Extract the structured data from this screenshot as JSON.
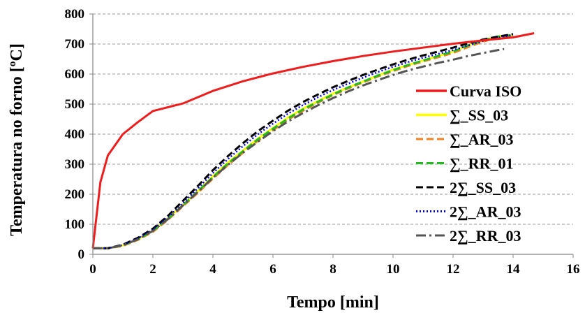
{
  "chart_data": {
    "type": "line",
    "title": "",
    "xlabel": "Tempo [min]",
    "ylabel": "Temperatura no forno [ºC]",
    "xlim": [
      0,
      16
    ],
    "ylim": [
      0,
      800
    ],
    "xticks": [
      0,
      2,
      4,
      6,
      8,
      10,
      12,
      14,
      16
    ],
    "yticks": [
      0,
      100,
      200,
      300,
      400,
      500,
      600,
      700,
      800
    ],
    "grid": "horizontal dashed",
    "legend_position": "right",
    "series": [
      {
        "name": "Curva ISO",
        "color": "#ee1c1c",
        "dash": "solid",
        "points": [
          [
            0,
            20
          ],
          [
            0.25,
            240
          ],
          [
            0.5,
            329
          ],
          [
            1,
            400
          ],
          [
            1.5,
            440
          ],
          [
            2,
            477
          ],
          [
            3,
            502
          ],
          [
            4,
            544
          ],
          [
            5,
            576
          ],
          [
            6,
            602
          ],
          [
            7,
            624
          ],
          [
            8,
            643
          ],
          [
            9,
            660
          ],
          [
            10,
            675
          ],
          [
            11,
            688
          ],
          [
            12,
            701
          ],
          [
            13,
            712
          ],
          [
            14,
            722
          ],
          [
            14.7,
            736
          ]
        ]
      },
      {
        "name": "∑_SS_03",
        "color": "#ffff00",
        "dash": "solid",
        "points": [
          [
            0,
            20
          ],
          [
            0.5,
            20
          ],
          [
            1,
            30
          ],
          [
            1.5,
            50
          ],
          [
            2,
            80
          ],
          [
            2.5,
            120
          ],
          [
            3,
            165
          ],
          [
            3.5,
            210
          ],
          [
            4,
            260
          ],
          [
            4.5,
            305
          ],
          [
            5,
            345
          ],
          [
            5.5,
            385
          ],
          [
            6,
            420
          ],
          [
            6.5,
            455
          ],
          [
            7,
            485
          ],
          [
            7.5,
            510
          ],
          [
            8,
            535
          ],
          [
            8.5,
            555
          ],
          [
            9,
            575
          ],
          [
            9.5,
            595
          ],
          [
            10,
            615
          ],
          [
            10.5,
            630
          ],
          [
            11,
            645
          ],
          [
            11.5,
            660
          ],
          [
            12,
            675
          ],
          [
            12.5,
            695
          ],
          [
            13,
            712
          ],
          [
            13.5,
            725
          ],
          [
            14,
            730
          ]
        ]
      },
      {
        "name": "∑_AR_03",
        "color": "#f08020",
        "dash": "dashed",
        "points": [
          [
            0,
            20
          ],
          [
            0.5,
            20
          ],
          [
            1,
            28
          ],
          [
            1.5,
            48
          ],
          [
            2,
            75
          ],
          [
            2.5,
            115
          ],
          [
            3,
            160
          ],
          [
            3.5,
            205
          ],
          [
            4,
            252
          ],
          [
            4.5,
            297
          ],
          [
            5,
            338
          ],
          [
            5.5,
            378
          ],
          [
            6,
            413
          ],
          [
            6.5,
            448
          ],
          [
            7,
            478
          ],
          [
            7.5,
            505
          ],
          [
            8,
            530
          ],
          [
            8.5,
            552
          ],
          [
            9,
            572
          ],
          [
            9.5,
            592
          ],
          [
            10,
            610
          ],
          [
            10.5,
            627
          ],
          [
            11,
            642
          ],
          [
            11.5,
            656
          ],
          [
            12,
            670
          ],
          [
            12.5,
            690
          ],
          [
            13,
            708
          ],
          [
            13.5,
            722
          ],
          [
            14,
            728
          ]
        ]
      },
      {
        "name": "∑_RR_01",
        "color": "#22bb22",
        "dash": "dashed",
        "points": [
          [
            0,
            20
          ],
          [
            0.5,
            20
          ],
          [
            1,
            30
          ],
          [
            1.5,
            50
          ],
          [
            2,
            78
          ],
          [
            2.5,
            118
          ],
          [
            3,
            163
          ],
          [
            3.5,
            210
          ],
          [
            4,
            257
          ],
          [
            4.5,
            302
          ],
          [
            5,
            343
          ],
          [
            5.5,
            383
          ],
          [
            6,
            418
          ],
          [
            6.5,
            452
          ],
          [
            7,
            482
          ],
          [
            7.5,
            508
          ],
          [
            8,
            532
          ],
          [
            8.5,
            555
          ],
          [
            9,
            575
          ],
          [
            9.5,
            595
          ],
          [
            10,
            613
          ],
          [
            10.5,
            630
          ],
          [
            11,
            645
          ],
          [
            11.5,
            660
          ],
          [
            12,
            675
          ],
          [
            12.5,
            695
          ],
          [
            13,
            712
          ],
          [
            13.5,
            725
          ],
          [
            14,
            730
          ]
        ]
      },
      {
        "name": "2∑_SS_03",
        "color": "#000000",
        "dash": "dashed",
        "points": [
          [
            0,
            20
          ],
          [
            0.5,
            20
          ],
          [
            1,
            32
          ],
          [
            1.5,
            55
          ],
          [
            2,
            85
          ],
          [
            2.5,
            128
          ],
          [
            3,
            178
          ],
          [
            3.5,
            228
          ],
          [
            4,
            280
          ],
          [
            4.5,
            327
          ],
          [
            5,
            370
          ],
          [
            5.5,
            410
          ],
          [
            6,
            445
          ],
          [
            6.5,
            478
          ],
          [
            7,
            507
          ],
          [
            7.5,
            532
          ],
          [
            8,
            556
          ],
          [
            8.5,
            577
          ],
          [
            9,
            597
          ],
          [
            9.5,
            615
          ],
          [
            10,
            632
          ],
          [
            10.5,
            648
          ],
          [
            11,
            662
          ],
          [
            11.5,
            675
          ],
          [
            12,
            688
          ],
          [
            12.5,
            702
          ],
          [
            13,
            715
          ],
          [
            13.5,
            725
          ],
          [
            14,
            733
          ]
        ]
      },
      {
        "name": "2∑_AR_03",
        "color": "#0000dd",
        "dash": "dotted",
        "points": [
          [
            0,
            20
          ],
          [
            0.5,
            20
          ],
          [
            1,
            31
          ],
          [
            1.5,
            53
          ],
          [
            2,
            82
          ],
          [
            2.5,
            123
          ],
          [
            3,
            170
          ],
          [
            3.5,
            220
          ],
          [
            4,
            270
          ],
          [
            4.5,
            317
          ],
          [
            5,
            360
          ],
          [
            5.5,
            400
          ],
          [
            6,
            435
          ],
          [
            6.5,
            468
          ],
          [
            7,
            497
          ],
          [
            7.5,
            523
          ],
          [
            8,
            547
          ],
          [
            8.5,
            568
          ],
          [
            9,
            588
          ],
          [
            9.5,
            607
          ],
          [
            10,
            624
          ],
          [
            10.5,
            640
          ],
          [
            11,
            654
          ],
          [
            11.5,
            667
          ],
          [
            12,
            680
          ],
          [
            12.5,
            695
          ],
          [
            13,
            710
          ],
          [
            13.5,
            721
          ],
          [
            14,
            730
          ]
        ]
      },
      {
        "name": "2∑_RR_03",
        "color": "#555555",
        "dash": "dashdot",
        "points": [
          [
            0,
            20
          ],
          [
            0.5,
            20
          ],
          [
            1,
            30
          ],
          [
            1.5,
            50
          ],
          [
            2,
            78
          ],
          [
            2.5,
            117
          ],
          [
            3,
            162
          ],
          [
            3.5,
            208
          ],
          [
            4,
            255
          ],
          [
            4.5,
            298
          ],
          [
            5,
            338
          ],
          [
            5.5,
            375
          ],
          [
            6,
            410
          ],
          [
            6.5,
            442
          ],
          [
            7,
            470
          ],
          [
            7.5,
            496
          ],
          [
            8,
            520
          ],
          [
            8.5,
            542
          ],
          [
            9,
            562
          ],
          [
            9.5,
            580
          ],
          [
            10,
            597
          ],
          [
            10.5,
            612
          ],
          [
            11,
            625
          ],
          [
            11.5,
            637
          ],
          [
            12,
            648
          ],
          [
            12.5,
            660
          ],
          [
            13,
            670
          ],
          [
            13.5,
            680
          ],
          [
            13.7,
            683
          ]
        ]
      }
    ]
  }
}
